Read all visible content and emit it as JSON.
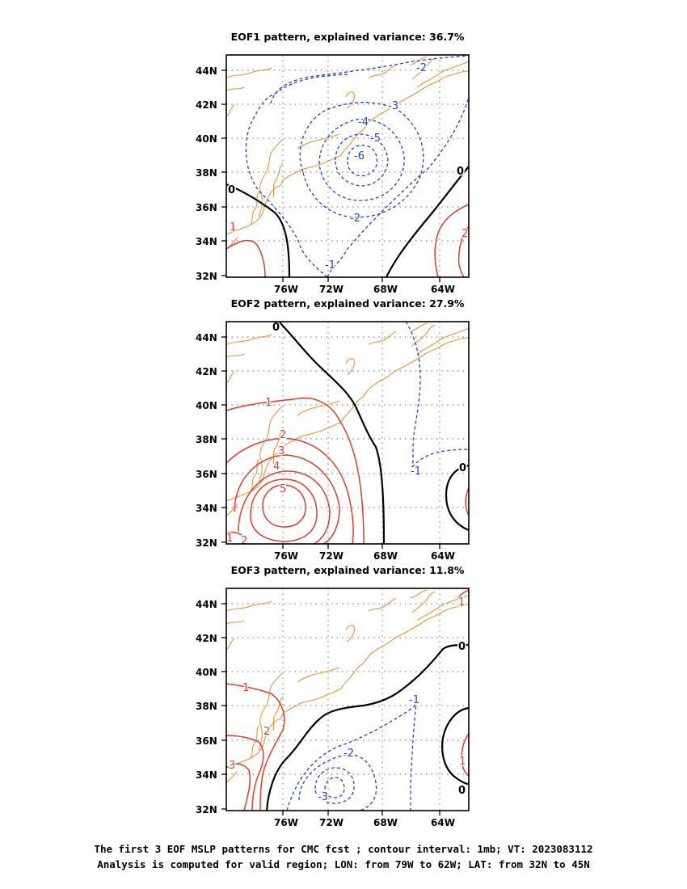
{
  "figure": {
    "caption_line1": "The first 3 EOF MSLP patterns for CMC fcst ; contour interval: 1mb; VT: 2023083112",
    "caption_line2": "Analysis is computed for valid region; LON: from 79W to 62W; LAT: from 32N to 45N"
  },
  "map": {
    "lon_ticks": [
      "76W",
      "72W",
      "68W",
      "64W"
    ],
    "lat_ticks": [
      "44N",
      "42N",
      "40N",
      "38N",
      "36N",
      "34N",
      "32N"
    ],
    "colors": {
      "coast": "#e8943f",
      "positive": "#e8392b",
      "negative": "#2040e0",
      "zero": "#000000",
      "grid": "#9a9a9a"
    }
  },
  "panels": [
    {
      "title": "EOF1 pattern, explained variance: 36.7%",
      "contour_labels": [
        "-2",
        "-3",
        "-4",
        "-5",
        "-6",
        "-2",
        "-1",
        "0",
        "0",
        "1",
        "2"
      ]
    },
    {
      "title": "EOF2 pattern, explained variance: 27.9%",
      "contour_labels": [
        "0",
        "1",
        "2",
        "3",
        "4",
        "5",
        "-1",
        "0",
        "1",
        "2"
      ]
    },
    {
      "title": "EOF3 pattern, explained variance: 11.8%",
      "contour_labels": [
        "1",
        "0",
        "1",
        "2",
        "3",
        "-1",
        "-2",
        "-3",
        "1",
        "0"
      ]
    }
  ]
}
